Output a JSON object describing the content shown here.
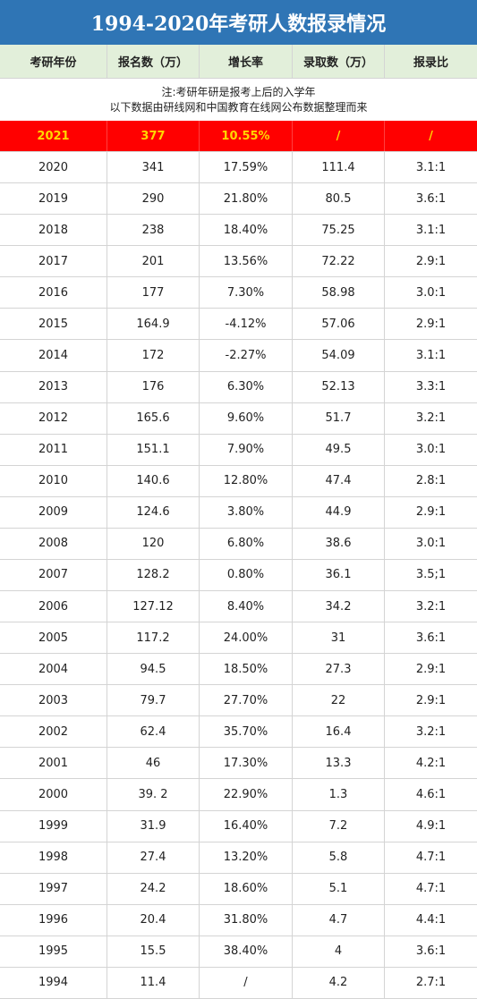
{
  "header": {
    "title": "1994-2020年考研人数报录情况"
  },
  "columns": [
    "考研年份",
    "报名数（万）",
    "增长率",
    "录取数（万）",
    "报录比"
  ],
  "notes": [
    "注:考研年研是报考上后的入学年",
    "以下数据由研线网和中国教育在线网公布数据整理而来"
  ],
  "highlight": [
    "2021",
    "377",
    "10.55%",
    "/",
    "/"
  ],
  "table": {
    "rows": [
      [
        "2020",
        "341",
        "17.59%",
        "111.4",
        "3.1:1"
      ],
      [
        "2019",
        "290",
        "21.80%",
        "80.5",
        "3.6:1"
      ],
      [
        "2018",
        "238",
        "18.40%",
        "75.25",
        "3.1:1"
      ],
      [
        "2017",
        "201",
        "13.56%",
        "72.22",
        "2.9:1"
      ],
      [
        "2016",
        "177",
        "7.30%",
        "58.98",
        "3.0:1"
      ],
      [
        "2015",
        "164.9",
        "-4.12%",
        "57.06",
        "2.9:1"
      ],
      [
        "2014",
        "172",
        "-2.27%",
        "54.09",
        "3.1:1"
      ],
      [
        "2013",
        "176",
        "6.30%",
        "52.13",
        "3.3:1"
      ],
      [
        "2012",
        "165.6",
        "9.60%",
        "51.7",
        "3.2:1"
      ],
      [
        "2011",
        "151.1",
        "7.90%",
        "49.5",
        "3.0:1"
      ],
      [
        "2010",
        "140.6",
        "12.80%",
        "47.4",
        "2.8:1"
      ],
      [
        "2009",
        "124.6",
        "3.80%",
        "44.9",
        "2.9:1"
      ],
      [
        "2008",
        "120",
        "6.80%",
        "38.6",
        "3.0:1"
      ],
      [
        "2007",
        "128.2",
        "0.80%",
        "36.1",
        "3.5;1"
      ],
      [
        "2006",
        "127.12",
        "8.40%",
        "34.2",
        "3.2:1"
      ],
      [
        "2005",
        "117.2",
        "24.00%",
        "31",
        "3.6:1"
      ],
      [
        "2004",
        "94.5",
        "18.50%",
        "27.3",
        "2.9:1"
      ],
      [
        "2003",
        "79.7",
        "27.70%",
        "22",
        "2.9:1"
      ],
      [
        "2002",
        "62.4",
        "35.70%",
        "16.4",
        "3.2:1"
      ],
      [
        "2001",
        "46",
        "17.30%",
        "13.3",
        "4.2:1"
      ],
      [
        "2000",
        "39. 2",
        "22.90%",
        "1.3",
        "4.6:1"
      ],
      [
        "1999",
        "31.9",
        "16.40%",
        "7.2",
        "4.9:1"
      ],
      [
        "1998",
        "27.4",
        "13.20%",
        "5.8",
        "4.7:1"
      ],
      [
        "1997",
        "24.2",
        "18.60%",
        "5.1",
        "4.7:1"
      ],
      [
        "1996",
        "20.4",
        "31.80%",
        "4.7",
        "4.4:1"
      ],
      [
        "1995",
        "15.5",
        "38.40%",
        "4",
        "3.6:1"
      ],
      [
        "1994",
        "11.4",
        "/",
        "4.2",
        "2.7:1"
      ]
    ]
  }
}
